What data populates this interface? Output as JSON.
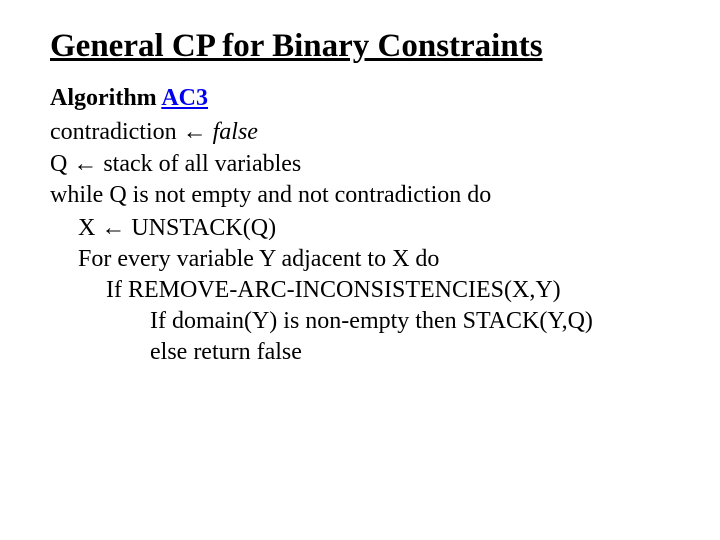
{
  "title": "General CP for Binary Constraints",
  "algorithm": {
    "label": "Algorithm ",
    "name": "AC3"
  },
  "lines": {
    "l1_a": "contradiction ",
    "l1_arrow": "←",
    "l1_b": " false",
    "l2_a": "Q ",
    "l2_arrow": "←",
    "l2_b": " stack of all variables",
    "l3": " while Q is not empty and not contradiction do",
    "l4_a": "X ",
    "l4_arrow": "←",
    "l4_b": " UNSTACK(Q)",
    "l5": "For every variable Y adjacent to X do",
    "l6": "If REMOVE-ARC-INCONSISTENCIES(X,Y)",
    "l7": "If domain(Y) is non-empty then STACK(Y,Q)",
    "l8": "else return false"
  },
  "style": {
    "background": "#ffffff",
    "text_color": "#000000",
    "link_color": "#0000ee",
    "title_fontsize": 33,
    "body_fontsize": 24,
    "font_family": "Times New Roman"
  }
}
